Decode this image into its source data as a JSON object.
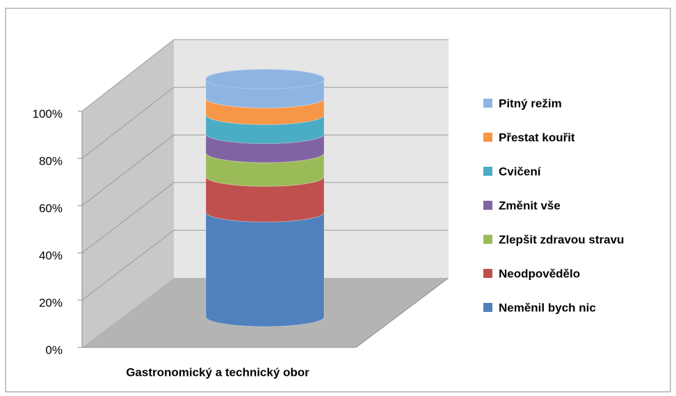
{
  "chart_data": {
    "type": "stacked-cylinder",
    "categories": [
      "Gastronomický a technický obor"
    ],
    "series": [
      {
        "name": "Neměnil bych nic",
        "color": "#4f81bd",
        "values": [
          44
        ]
      },
      {
        "name": "Neodpovědělo",
        "color": "#c0504d",
        "values": [
          15
        ]
      },
      {
        "name": "Zlepšit zdravou stravu",
        "color": "#9bbb59",
        "values": [
          10
        ]
      },
      {
        "name": "Změnit vše",
        "color": "#8064a2",
        "values": [
          8
        ]
      },
      {
        "name": "Cvičení",
        "color": "#4bacc6",
        "values": [
          8
        ]
      },
      {
        "name": "Přestat kouřit",
        "color": "#f79646",
        "values": [
          7
        ]
      },
      {
        "name": "Pitný režim",
        "color": "#8eb4e3",
        "values": [
          8
        ]
      }
    ],
    "ylim": [
      0,
      100
    ],
    "yticks": [
      {
        "value": 0,
        "label": "0%"
      },
      {
        "value": 20,
        "label": "20%"
      },
      {
        "value": 40,
        "label": "40%"
      },
      {
        "value": 60,
        "label": "60%"
      },
      {
        "value": 80,
        "label": "80%"
      },
      {
        "value": 100,
        "label": "100%"
      }
    ],
    "grid": true,
    "legend": "right"
  }
}
